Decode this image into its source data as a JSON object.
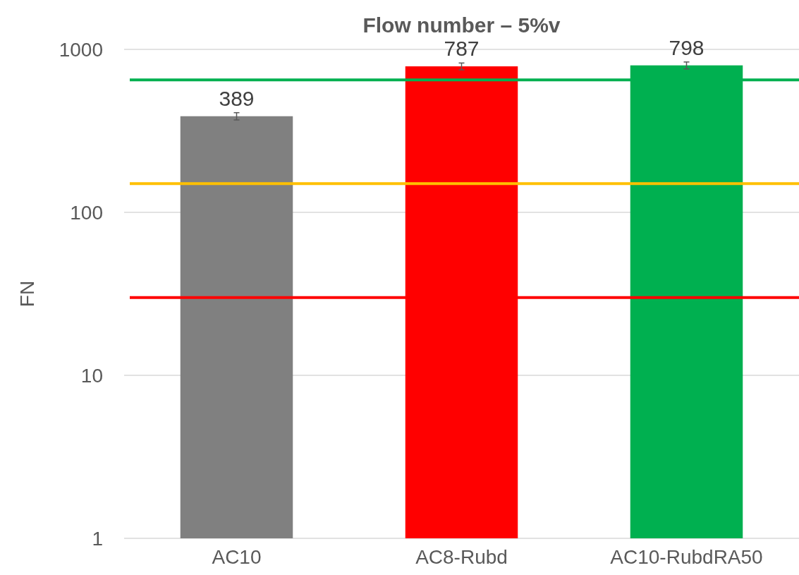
{
  "chart_data": {
    "type": "bar",
    "title": "Flow number – 5%v",
    "ylabel": "FN",
    "categories": [
      "AC10",
      "AC8-Rubd",
      "AC10-RubdRA50"
    ],
    "values": [
      389,
      787,
      798
    ],
    "colors": [
      "#808080",
      "#ff0000",
      "#00b050"
    ],
    "errors": [
      20,
      38,
      39
    ],
    "data_labels": true,
    "log": true,
    "grid": "y",
    "ylim": [
      1,
      1000
    ],
    "yticks": [
      1,
      10,
      100,
      1000
    ],
    "ref_lines": [
      {
        "axis": "y",
        "value": 650,
        "color": "#00b050"
      },
      {
        "axis": "y",
        "value": 150,
        "color": "#ffc000"
      },
      {
        "axis": "y",
        "value": 30,
        "color": "#ff0000"
      }
    ]
  }
}
